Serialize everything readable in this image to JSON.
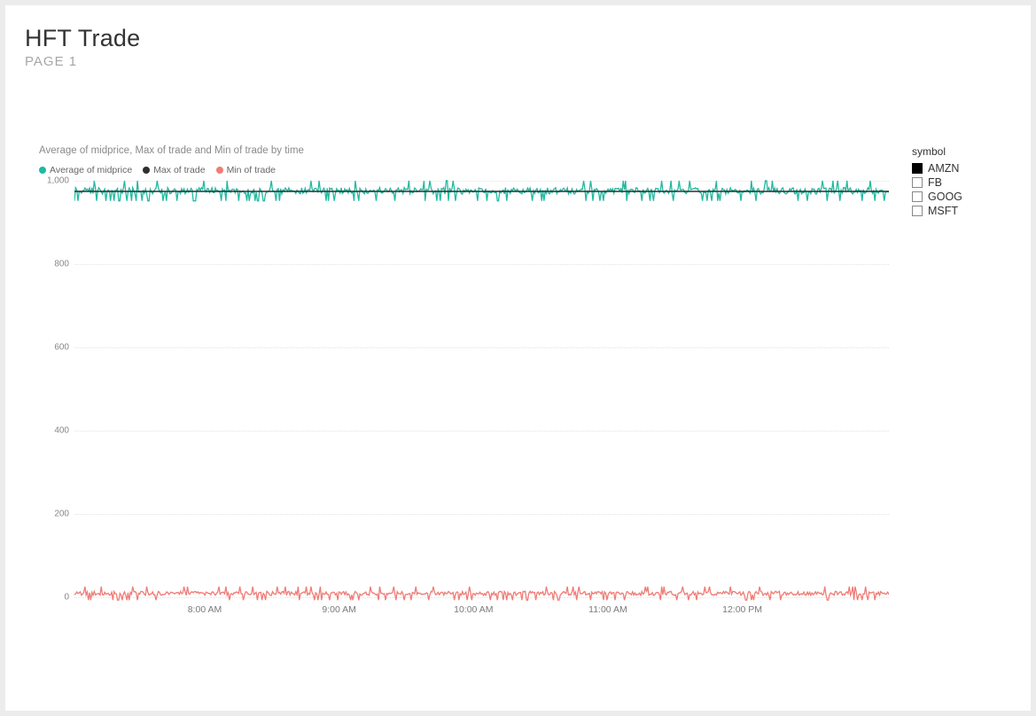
{
  "header": {
    "title": "HFT Trade",
    "subtitle": "PAGE 1"
  },
  "chart": {
    "type": "line",
    "title": "Average of midprice, Max of trade and Min of trade by time",
    "title_fontsize": 11.5,
    "title_color": "#8a8a8a",
    "background_color": "#ffffff",
    "grid_color": "#e3e3e3",
    "ylim": [
      0,
      1000
    ],
    "yticks": [
      0,
      200,
      400,
      600,
      800,
      1000
    ],
    "ytick_labels": [
      "0",
      "200",
      "400",
      "600",
      "800",
      "1,000"
    ],
    "xticks_pct": [
      16,
      32.5,
      49,
      65.5,
      82
    ],
    "xtick_labels": [
      "8:00 AM",
      "9:00 AM",
      "10:00 AM",
      "11:00 AM",
      "12:00 PM"
    ],
    "axis_label_fontsize": 10.5,
    "axis_label_color": "#7a7a7a",
    "series": [
      {
        "name": "Average of midprice",
        "color": "#1fb9a0",
        "band_center": 975,
        "band_jitter": 22,
        "line_width": 1
      },
      {
        "name": "Max of trade",
        "color": "#2e2e2e",
        "band_center": 975,
        "band_jitter": 0,
        "line_width": 1
      },
      {
        "name": "Min of trade",
        "color": "#f07c76",
        "band_center": 10,
        "band_jitter": 14,
        "line_width": 1
      }
    ]
  },
  "slicer": {
    "title": "symbol",
    "items": [
      {
        "label": "AMZN",
        "checked": true
      },
      {
        "label": "FB",
        "checked": false
      },
      {
        "label": "GOOG",
        "checked": false
      },
      {
        "label": "MSFT",
        "checked": false
      }
    ]
  }
}
